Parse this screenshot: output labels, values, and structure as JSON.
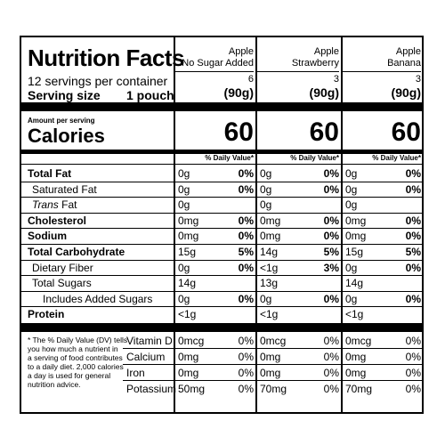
{
  "header": {
    "title": "Nutrition Facts",
    "servings": "12 servings per container",
    "serving_size_label": "Serving size",
    "serving_size_value": "1 pouch"
  },
  "products": [
    {
      "name1": "Apple",
      "name2": "No Sugar Added",
      "count": "6",
      "weight": "(90g)"
    },
    {
      "name1": "Apple",
      "name2": "Strawberry",
      "count": "3",
      "weight": "(90g)"
    },
    {
      "name1": "Apple",
      "name2": "Banana",
      "count": "3",
      "weight": "(90g)"
    }
  ],
  "calories": {
    "amount_label": "Amount per serving",
    "label": "Calories",
    "values": [
      "60",
      "60",
      "60"
    ],
    "dv_header": "% Daily Value*"
  },
  "nutrients": [
    {
      "label": "Total Fat",
      "bold": true,
      "amounts": [
        "0g",
        "0g",
        "0g"
      ],
      "dvs": [
        "0%",
        "0%",
        "0%"
      ]
    },
    {
      "label": "Saturated Fat",
      "bold": false,
      "amounts": [
        "0g",
        "0g",
        "0g"
      ],
      "dvs": [
        "0%",
        "0%",
        "0%"
      ]
    },
    {
      "label": "Trans",
      "label_suffix": " Fat",
      "bold": false,
      "amounts": [
        "0g",
        "0g",
        "0g"
      ],
      "dvs": [
        "",
        "",
        ""
      ]
    },
    {
      "label": "Cholesterol",
      "bold": true,
      "amounts": [
        "0mg",
        "0mg",
        "0mg"
      ],
      "dvs": [
        "0%",
        "0%",
        "0%"
      ]
    },
    {
      "label": "Sodium",
      "bold": true,
      "amounts": [
        "0mg",
        "0mg",
        "0mg"
      ],
      "dvs": [
        "0%",
        "0%",
        "0%"
      ]
    },
    {
      "label": "Total Carbohydrate",
      "bold": true,
      "amounts": [
        "15g",
        "14g",
        "15g"
      ],
      "dvs": [
        "5%",
        "5%",
        "5%"
      ]
    },
    {
      "label": "Dietary Fiber",
      "bold": false,
      "amounts": [
        "0g",
        "<1g",
        "0g"
      ],
      "dvs": [
        "0%",
        "3%",
        "0%"
      ]
    },
    {
      "label": "Total Sugars",
      "bold": false,
      "amounts": [
        "14g",
        "13g",
        "14g"
      ],
      "dvs": [
        "",
        "",
        ""
      ]
    },
    {
      "label": "Includes Added Sugars",
      "bold": false,
      "amounts": [
        "0g",
        "0g",
        "0g"
      ],
      "dvs": [
        "0%",
        "0%",
        "0%"
      ]
    },
    {
      "label": "Protein",
      "bold": true,
      "amounts": [
        "<1g",
        "<1g",
        "<1g"
      ],
      "dvs": [
        "",
        "",
        ""
      ]
    }
  ],
  "vitamins": [
    {
      "label": "Vitamin D",
      "amounts": [
        "0mcg",
        "0mcg",
        "0mcg"
      ],
      "dvs": [
        "0%",
        "0%",
        "0%"
      ]
    },
    {
      "label": "Calcium",
      "amounts": [
        "0mg",
        "0mg",
        "0mg"
      ],
      "dvs": [
        "0%",
        "0%",
        "0%"
      ]
    },
    {
      "label": "Iron",
      "amounts": [
        "0mg",
        "0mg",
        "0mg"
      ],
      "dvs": [
        "0%",
        "0%",
        "0%"
      ]
    },
    {
      "label": "Potassium",
      "amounts": [
        "50mg",
        "70mg",
        "70mg"
      ],
      "dvs": [
        "0%",
        "0%",
        "0%"
      ]
    }
  ],
  "footnote": [
    "* The % Daily Value (DV) tells",
    "you how much a nutrient in",
    "a serving of food contributes",
    "to a daily diet. 2,000 calories",
    "a day is used for general",
    "nutrition advice."
  ]
}
